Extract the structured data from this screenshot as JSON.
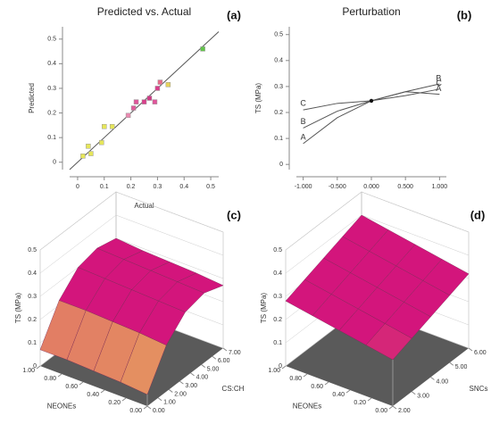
{
  "chart_data": [
    {
      "type": "scatter",
      "title": "Predicted vs. Actual",
      "panel_label": "(a)",
      "xlabel": "Actual",
      "ylabel": "Predicted",
      "xlim": [
        -0.03,
        0.53
      ],
      "ylim": [
        -0.03,
        0.55
      ],
      "xticks": [
        0,
        0.1,
        0.2,
        0.3,
        0.4,
        0.5
      ],
      "yticks": [
        0,
        0.1,
        0.2,
        0.3,
        0.4,
        0.5
      ],
      "x": [
        0.02,
        0.04,
        0.05,
        0.09,
        0.1,
        0.13,
        0.19,
        0.21,
        0.22,
        0.25,
        0.27,
        0.29,
        0.3,
        0.31,
        0.34,
        0.47
      ],
      "y": [
        0.025,
        0.065,
        0.035,
        0.08,
        0.145,
        0.145,
        0.19,
        0.22,
        0.245,
        0.245,
        0.26,
        0.245,
        0.3,
        0.325,
        0.315,
        0.46
      ],
      "colors": [
        "#e6e65a",
        "#e6e65a",
        "#e6e65a",
        "#e6e65a",
        "#e6e65a",
        "#e6e65a",
        "#e98ab0",
        "#e05a9a",
        "#e0559a",
        "#d9408c",
        "#cf3a86",
        "#e0559a",
        "#d9408c",
        "#e86a8a",
        "#e6d35a",
        "#62c44a"
      ],
      "line_color": "#555555"
    },
    {
      "type": "line",
      "title": "Perturbation",
      "panel_label": "(b)",
      "ylabel": "TS (MPa)",
      "xlim": [
        -1.1,
        1.1
      ],
      "ylim": [
        -0.02,
        0.53
      ],
      "xticks": [
        {
          "value": -1,
          "label": "-1.000"
        },
        {
          "value": -0.5,
          "label": "-0.500"
        },
        {
          "value": 0,
          "label": "0.000"
        },
        {
          "value": 0.5,
          "label": "0.500"
        },
        {
          "value": 1,
          "label": "1.000"
        }
      ],
      "yticks": [
        0,
        0.1,
        0.2,
        0.3,
        0.4,
        0.5
      ],
      "x": [
        -1,
        -0.5,
        0,
        0.5,
        1
      ],
      "series": [
        {
          "name": "A",
          "color": "#555555",
          "values": [
            0.08,
            0.18,
            0.245,
            0.28,
            0.27
          ]
        },
        {
          "name": "B",
          "color": "#555555",
          "values": [
            0.14,
            0.205,
            0.245,
            0.28,
            0.31
          ]
        },
        {
          "name": "C",
          "color": "#555555",
          "values": [
            0.21,
            0.235,
            0.245,
            0.265,
            0.29
          ]
        }
      ]
    },
    {
      "type": "surface",
      "panel_label": "(c)",
      "zlabel": "TS (MPa)",
      "xlabel": "CS:CH",
      "ylabel": "NEONEs",
      "xlim": [
        0,
        7
      ],
      "ylim": [
        0,
        1
      ],
      "zlim": [
        0,
        0.5
      ],
      "xticks": [
        {
          "value": 0,
          "label": "0.00"
        },
        {
          "value": 1,
          "label": "1.00"
        },
        {
          "value": 2,
          "label": "2.00"
        },
        {
          "value": 3,
          "label": "3.00"
        },
        {
          "value": 4,
          "label": "4.00"
        },
        {
          "value": 5,
          "label": "5.00"
        },
        {
          "value": 6,
          "label": "6.00"
        },
        {
          "value": 7,
          "label": "7.00"
        }
      ],
      "yticks": [
        {
          "value": 0,
          "label": "0.00"
        },
        {
          "value": 0.2,
          "label": "0.20"
        },
        {
          "value": 0.4,
          "label": "0.40"
        },
        {
          "value": 0.6,
          "label": "0.60"
        },
        {
          "value": 0.8,
          "label": "0.80"
        },
        {
          "value": 1,
          "label": "1.00"
        }
      ],
      "zticks": [
        0,
        0.1,
        0.2,
        0.3,
        0.4,
        0.5
      ],
      "x": [
        0,
        1.75,
        3.5,
        5.25,
        7
      ],
      "y": [
        0,
        0.25,
        0.5,
        0.75,
        1
      ],
      "z": [
        [
          0.05,
          0.2,
          0.28,
          0.3,
          0.27
        ],
        [
          0.06,
          0.21,
          0.285,
          0.305,
          0.28
        ],
        [
          0.065,
          0.215,
          0.29,
          0.31,
          0.285
        ],
        [
          0.07,
          0.22,
          0.295,
          0.315,
          0.29
        ],
        [
          0.07,
          0.22,
          0.3,
          0.32,
          0.3
        ]
      ],
      "colormap": [
        "#f2f24a",
        "#d3157c"
      ],
      "floor_color": "#5a5a5a"
    },
    {
      "type": "surface",
      "panel_label": "(d)",
      "zlabel": "TS (MPa)",
      "xlabel": "SNCs",
      "ylabel": "NEONEs",
      "xlim": [
        2,
        6
      ],
      "ylim": [
        0,
        1
      ],
      "zlim": [
        0,
        0.5
      ],
      "xticks": [
        {
          "value": 2,
          "label": "2.00"
        },
        {
          "value": 3,
          "label": "3.00"
        },
        {
          "value": 4,
          "label": "4.00"
        },
        {
          "value": 5,
          "label": "5.00"
        },
        {
          "value": 6,
          "label": "6.00"
        }
      ],
      "yticks": [
        {
          "value": 0,
          "label": "0.00"
        },
        {
          "value": 0.2,
          "label": "0.20"
        },
        {
          "value": 0.4,
          "label": "0.40"
        },
        {
          "value": 0.6,
          "label": "0.60"
        },
        {
          "value": 0.8,
          "label": "0.80"
        },
        {
          "value": 1,
          "label": "1.00"
        }
      ],
      "zticks": [
        0,
        0.1,
        0.2,
        0.3,
        0.4,
        0.5
      ],
      "x": [
        2,
        3,
        4,
        5,
        6
      ],
      "y": [
        0,
        0.25,
        0.5,
        0.75,
        1
      ],
      "z": [
        [
          0.2,
          0.23,
          0.26,
          0.29,
          0.32
        ],
        [
          0.22,
          0.25,
          0.28,
          0.31,
          0.34
        ],
        [
          0.24,
          0.27,
          0.3,
          0.33,
          0.36
        ],
        [
          0.26,
          0.29,
          0.32,
          0.35,
          0.38
        ],
        [
          0.28,
          0.31,
          0.34,
          0.37,
          0.4
        ]
      ],
      "colormap": [
        "#f2f24a",
        "#d3157c"
      ],
      "floor_color": "#5a5a5a"
    }
  ]
}
